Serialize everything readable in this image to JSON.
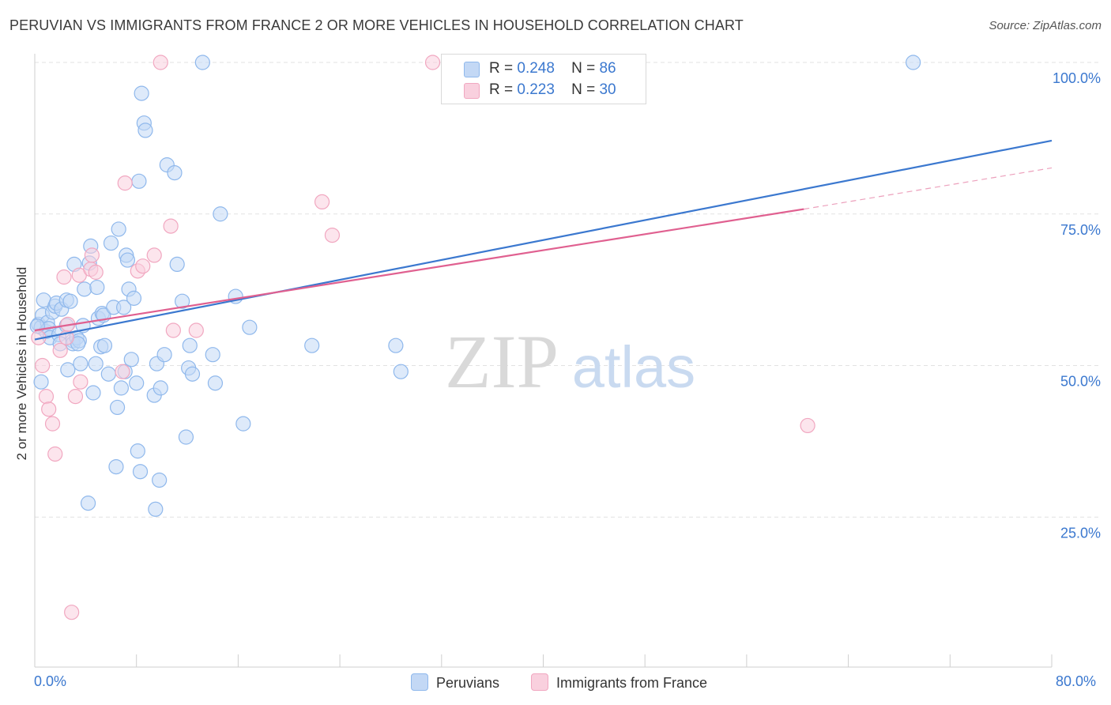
{
  "title": "PERUVIAN VS IMMIGRANTS FROM FRANCE 2 OR MORE VEHICLES IN HOUSEHOLD CORRELATION CHART",
  "source": "Source: ZipAtlas.com",
  "watermark": {
    "zip": "ZIP",
    "atlas": "atlas"
  },
  "legend": {
    "r_label": "R =",
    "n_label": "N =",
    "rows": [
      {
        "r": "0.248",
        "n": "86",
        "color": "#8fb8ec",
        "fill": "#c3d8f5"
      },
      {
        "r": "0.223",
        "n": "30",
        "color": "#f1a7c0",
        "fill": "#f9d0de"
      }
    ]
  },
  "chart_data": {
    "type": "scatter",
    "title": "PERUVIAN VS IMMIGRANTS FROM FRANCE 2 OR MORE VEHICLES IN HOUSEHOLD CORRELATION CHART",
    "xlabel": "",
    "ylabel": "2 or more Vehicles in Household",
    "xlim": [
      0,
      80
    ],
    "ylim": [
      0,
      100
    ],
    "x_tick_labels": [
      "0.0%",
      "80.0%"
    ],
    "y_ticks": [
      {
        "value": 100,
        "label": "100.0%"
      },
      {
        "value": 75,
        "label": "75.0%"
      },
      {
        "value": 50,
        "label": "50.0%"
      },
      {
        "value": 25,
        "label": "25.0%"
      }
    ],
    "series": [
      {
        "name": "Peruvians",
        "color": "#3b78cf",
        "point_color": "#8fb8ec",
        "point_fill": "#c3d8f5",
        "trend": {
          "x0": 0,
          "y0": 54.3,
          "x1": 80,
          "y1": 87.1
        },
        "points": [
          [
            0.3,
            56.8
          ],
          [
            0.5,
            56.3
          ],
          [
            0.5,
            47.3
          ],
          [
            0.6,
            58.3
          ],
          [
            0.7,
            60.8
          ],
          [
            0.9,
            55.6
          ],
          [
            1,
            57.1
          ],
          [
            1.1,
            56.1
          ],
          [
            1.2,
            54.6
          ],
          [
            1.4,
            58.8
          ],
          [
            1.6,
            59.8
          ],
          [
            1.7,
            60.3
          ],
          [
            1.9,
            55.1
          ],
          [
            2,
            53.6
          ],
          [
            2.1,
            59.3
          ],
          [
            2.5,
            60.8
          ],
          [
            2.5,
            56.6
          ],
          [
            2.6,
            49.3
          ],
          [
            2.8,
            60.6
          ],
          [
            3,
            54.1
          ],
          [
            3,
            53.6
          ],
          [
            3.1,
            66.7
          ],
          [
            3.3,
            54.6
          ],
          [
            3.5,
            54.1
          ],
          [
            3.6,
            50.3
          ],
          [
            3.8,
            56.6
          ],
          [
            3.9,
            62.6
          ],
          [
            4.2,
            27.3
          ],
          [
            4.3,
            66.9
          ],
          [
            4.4,
            69.7
          ],
          [
            4.6,
            45.5
          ],
          [
            4.9,
            62.9
          ],
          [
            4.8,
            50.3
          ],
          [
            5,
            57.8
          ],
          [
            5.2,
            53.1
          ],
          [
            5.3,
            58.6
          ],
          [
            5.4,
            58.3
          ],
          [
            5.5,
            53.3
          ],
          [
            5.8,
            48.6
          ],
          [
            6,
            70.2
          ],
          [
            6.2,
            59.6
          ],
          [
            6.4,
            33.3
          ],
          [
            6.5,
            43.1
          ],
          [
            6.6,
            72.5
          ],
          [
            6.8,
            46.3
          ],
          [
            7,
            59.6
          ],
          [
            7.1,
            49.0
          ],
          [
            7.2,
            68.2
          ],
          [
            7.3,
            67.4
          ],
          [
            7.4,
            62.6
          ],
          [
            7.6,
            51.0
          ],
          [
            7.8,
            61.1
          ],
          [
            8.0,
            47.1
          ],
          [
            8.1,
            35.9
          ],
          [
            8.2,
            80.4
          ],
          [
            8.3,
            32.5
          ],
          [
            8.4,
            94.9
          ],
          [
            8.6,
            90.0
          ],
          [
            8.7,
            88.8
          ],
          [
            9.4,
            45.1
          ],
          [
            9.5,
            26.3
          ],
          [
            9.6,
            50.3
          ],
          [
            9.8,
            31.1
          ],
          [
            9.9,
            46.3
          ],
          [
            10.2,
            51.8
          ],
          [
            10.4,
            83.1
          ],
          [
            11.0,
            81.8
          ],
          [
            11.2,
            66.7
          ],
          [
            11.6,
            60.6
          ],
          [
            11.9,
            38.2
          ],
          [
            12.1,
            49.6
          ],
          [
            12.2,
            53.3
          ],
          [
            12.4,
            48.6
          ],
          [
            13.2,
            100
          ],
          [
            14,
            51.8
          ],
          [
            14.2,
            47.1
          ],
          [
            14.6,
            75
          ],
          [
            15.8,
            61.4
          ],
          [
            16.4,
            40.4
          ],
          [
            16.9,
            56.3
          ],
          [
            21.8,
            53.3
          ],
          [
            28.4,
            53.3
          ],
          [
            28.8,
            49.0
          ],
          [
            69.1,
            100
          ],
          [
            0.2,
            56.5
          ],
          [
            3.4,
            53.6
          ]
        ]
      },
      {
        "name": "Immigrants from France",
        "color": "#e06090",
        "point_color": "#f1a7c0",
        "point_fill": "#f9d0de",
        "trend": {
          "x0": 0,
          "y0": 55.8,
          "x1": 60.5,
          "y1": 75.8,
          "dash_x1": 80,
          "dash_y1": 82.6
        },
        "points": [
          [
            0.3,
            54.6
          ],
          [
            0.6,
            50.0
          ],
          [
            0.9,
            44.9
          ],
          [
            1.1,
            42.8
          ],
          [
            1.4,
            40.4
          ],
          [
            1.6,
            35.4
          ],
          [
            2.0,
            52.5
          ],
          [
            2.3,
            64.6
          ],
          [
            2.5,
            54.6
          ],
          [
            2.6,
            56.8
          ],
          [
            2.9,
            9.3
          ],
          [
            3.2,
            44.9
          ],
          [
            3.5,
            64.9
          ],
          [
            3.6,
            47.3
          ],
          [
            4.4,
            65.9
          ],
          [
            4.5,
            68.2
          ],
          [
            4.8,
            65.4
          ],
          [
            6.9,
            49.0
          ],
          [
            7.1,
            80.1
          ],
          [
            8.1,
            65.6
          ],
          [
            8.5,
            66.4
          ],
          [
            9.4,
            68.2
          ],
          [
            9.9,
            100
          ],
          [
            10.7,
            73.0
          ],
          [
            10.9,
            55.8
          ],
          [
            12.7,
            55.8
          ],
          [
            22.6,
            77.0
          ],
          [
            23.4,
            71.5
          ],
          [
            31.3,
            100
          ],
          [
            60.8,
            40.1
          ]
        ]
      }
    ]
  },
  "bottom_legend": {
    "items": [
      "Peruvians",
      "Immigrants from France"
    ]
  }
}
